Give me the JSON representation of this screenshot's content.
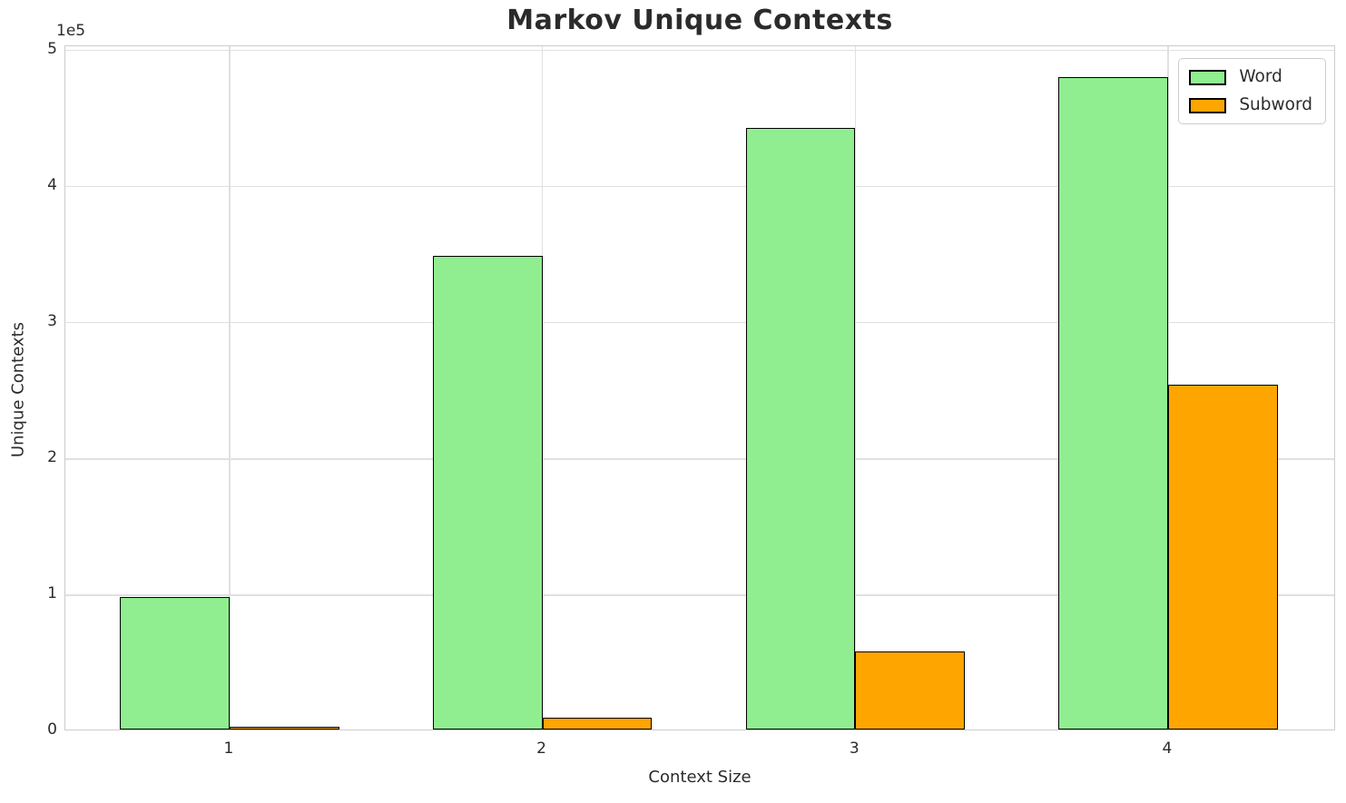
{
  "chart_data": {
    "type": "bar",
    "title": "Markov Unique Contexts",
    "xlabel": "Context Size",
    "ylabel": "Unique Contexts",
    "y_offset_label": "1e5",
    "categories": [
      "1",
      "2",
      "3",
      "4"
    ],
    "series": [
      {
        "name": "Word",
        "color": "#90ee90",
        "values": [
          97000,
          348000,
          442000,
          479000
        ]
      },
      {
        "name": "Subword",
        "color": "#ffa500",
        "values": [
          1500,
          8500,
          57000,
          253000
        ]
      }
    ],
    "bar_edge_color": "#000000",
    "bar_width": 0.35,
    "xticks": [
      1,
      2,
      3,
      4
    ],
    "xlim": [
      0.475,
      4.537
    ],
    "ylim": [
      0,
      503000
    ],
    "yticks": [
      0,
      100000,
      200000,
      300000,
      400000,
      500000
    ],
    "ytick_labels": [
      "0",
      "1",
      "2",
      "3",
      "4",
      "5"
    ],
    "grid": true,
    "legend_position": "upper right",
    "colors": {
      "background": "#ffffff",
      "grid": "#e0e0e0",
      "spine": "#cccccc",
      "text": "#2b2b2b"
    }
  }
}
